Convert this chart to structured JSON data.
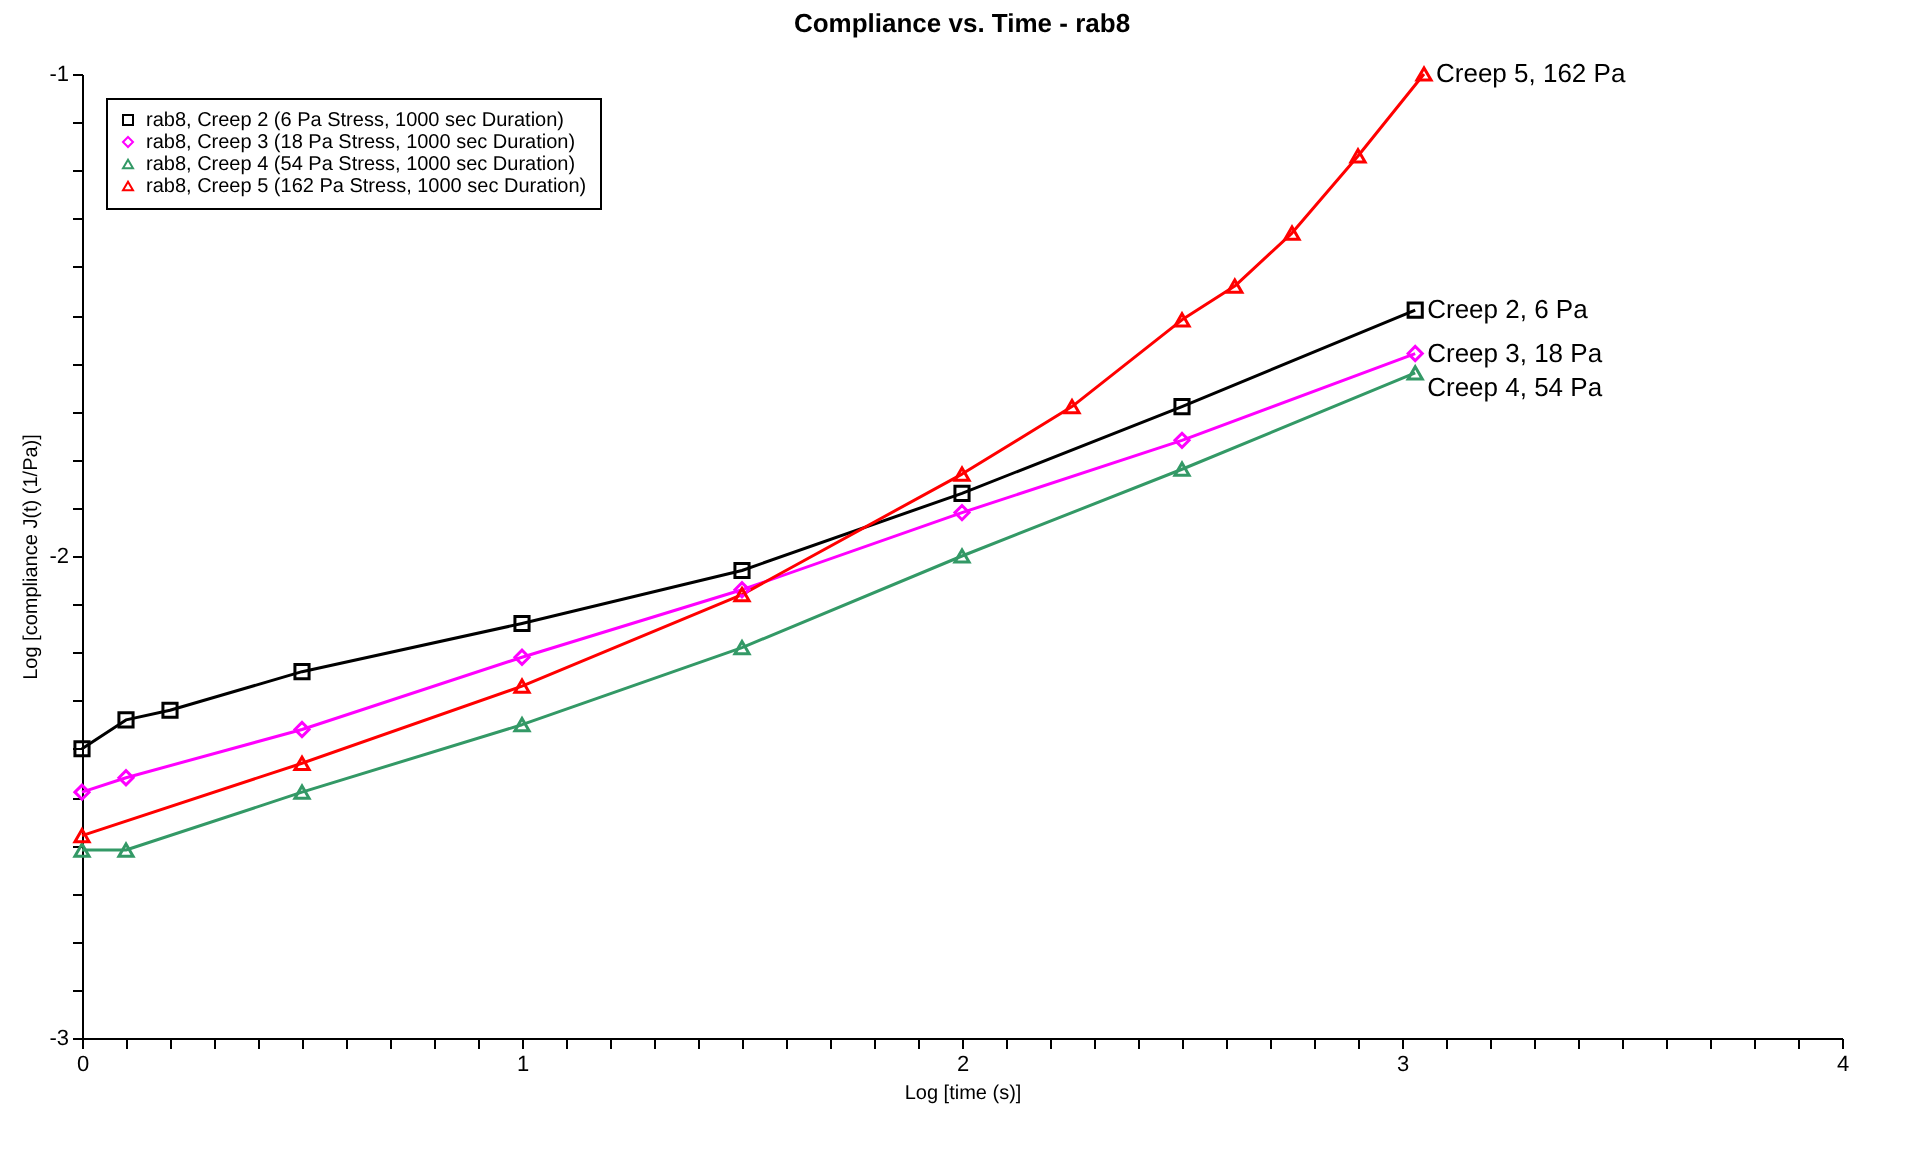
{
  "chart_data": {
    "type": "line",
    "title": "Compliance vs. Time - rab8",
    "xlabel": "Log [time (s)]",
    "ylabel": "Log [compliance J(t) (1/Pa)]",
    "xlim": [
      0,
      4
    ],
    "ylim": [
      -3,
      -1
    ],
    "xticks": [
      0,
      {
        "value": 0.1,
        "label": null
      },
      {
        "value": 0.2,
        "label": null
      },
      {
        "value": 0.3,
        "label": null
      },
      {
        "value": 0.4,
        "label": null
      },
      {
        "value": 0.5,
        "label": null
      },
      {
        "value": 0.6,
        "label": null
      },
      {
        "value": 0.7,
        "label": null
      },
      {
        "value": 0.8,
        "label": null
      },
      {
        "value": 0.9,
        "label": null
      },
      1,
      {
        "value": 1.1,
        "label": null
      },
      {
        "value": 1.2,
        "label": null
      },
      {
        "value": 1.3,
        "label": null
      },
      {
        "value": 1.4,
        "label": null
      },
      {
        "value": 1.5,
        "label": null
      },
      {
        "value": 1.6,
        "label": null
      },
      {
        "value": 1.7,
        "label": null
      },
      {
        "value": 1.8,
        "label": null
      },
      {
        "value": 1.9,
        "label": null
      },
      2,
      {
        "value": 2.1,
        "label": null
      },
      {
        "value": 2.2,
        "label": null
      },
      {
        "value": 2.3,
        "label": null
      },
      {
        "value": 2.4,
        "label": null
      },
      {
        "value": 2.5,
        "label": null
      },
      {
        "value": 2.6,
        "label": null
      },
      {
        "value": 2.7,
        "label": null
      },
      {
        "value": 2.8,
        "label": null
      },
      {
        "value": 2.9,
        "label": null
      },
      3,
      {
        "value": 3.1,
        "label": null
      },
      {
        "value": 3.2,
        "label": null
      },
      {
        "value": 3.3,
        "label": null
      },
      {
        "value": 3.4,
        "label": null
      },
      {
        "value": 3.5,
        "label": null
      },
      {
        "value": 3.6,
        "label": null
      },
      {
        "value": 3.7,
        "label": null
      },
      {
        "value": 3.8,
        "label": null
      },
      {
        "value": 3.9,
        "label": null
      },
      4
    ],
    "yticks": [
      -3,
      {
        "value": -2.9,
        "label": null
      },
      {
        "value": -2.8,
        "label": null
      },
      {
        "value": -2.7,
        "label": null
      },
      {
        "value": -2.6,
        "label": null
      },
      {
        "value": -2.5,
        "label": null
      },
      {
        "value": -2.4,
        "label": null
      },
      {
        "value": -2.3,
        "label": null
      },
      {
        "value": -2.2,
        "label": null
      },
      {
        "value": -2.1,
        "label": null
      },
      -2,
      {
        "value": -1.9,
        "label": null
      },
      {
        "value": -1.8,
        "label": null
      },
      {
        "value": -1.7,
        "label": null
      },
      {
        "value": -1.6,
        "label": null
      },
      {
        "value": -1.5,
        "label": null
      },
      {
        "value": -1.4,
        "label": null
      },
      {
        "value": -1.3,
        "label": null
      },
      {
        "value": -1.2,
        "label": null
      },
      {
        "value": -1.1,
        "label": null
      },
      -1
    ],
    "grid": false,
    "legend": "top left",
    "series": [
      {
        "name": "rab8, Creep 2 (6 Pa Stress, 1000 sec Duration)",
        "color": "#000000",
        "marker": "square",
        "x": [
          0,
          0.1,
          0.2,
          0.5,
          1,
          1.5,
          2,
          2.5,
          3.03
        ],
        "values": [
          -2.4,
          -2.34,
          -2.32,
          -2.24,
          -2.14,
          -2.03,
          -1.87,
          -1.69,
          -1.49
        ]
      },
      {
        "name": "rab8, Creep 3 (18 Pa Stress, 1000 sec Duration)",
        "color": "#ff00ff",
        "marker": "diamond",
        "x": [
          0,
          0.1,
          0.5,
          1,
          1.5,
          2,
          2.5,
          3.03
        ],
        "values": [
          -2.49,
          -2.46,
          -2.36,
          -2.21,
          -2.07,
          -1.91,
          -1.76,
          -1.58
        ]
      },
      {
        "name": "rab8, Creep 4 (54 Pa Stress, 1000 sec Duration)",
        "color": "#339966",
        "marker": "triangle",
        "x": [
          0,
          0.1,
          0.5,
          1,
          1.5,
          2,
          2.5,
          3.03
        ],
        "values": [
          -2.61,
          -2.61,
          -2.49,
          -2.35,
          -2.19,
          -2.0,
          -1.82,
          -1.62
        ]
      },
      {
        "name": "rab8, Creep 5 (162 Pa Stress, 1000 sec Duration)",
        "color": "#ff0000",
        "marker": "triangle",
        "x": [
          0,
          0.5,
          1,
          1.5,
          2,
          2.25,
          2.5,
          2.62,
          2.75,
          2.9,
          3.05
        ],
        "values": [
          -2.58,
          -2.43,
          -2.27,
          -2.08,
          -1.83,
          -1.69,
          -1.51,
          -1.44,
          -1.33,
          -1.17,
          -1.0
        ]
      }
    ],
    "annotations": [
      "Creep 2, 6 Pa",
      "Creep 3, 18 Pa",
      "Creep 4, 54 Pa",
      "Creep 5, 162 Pa"
    ]
  }
}
